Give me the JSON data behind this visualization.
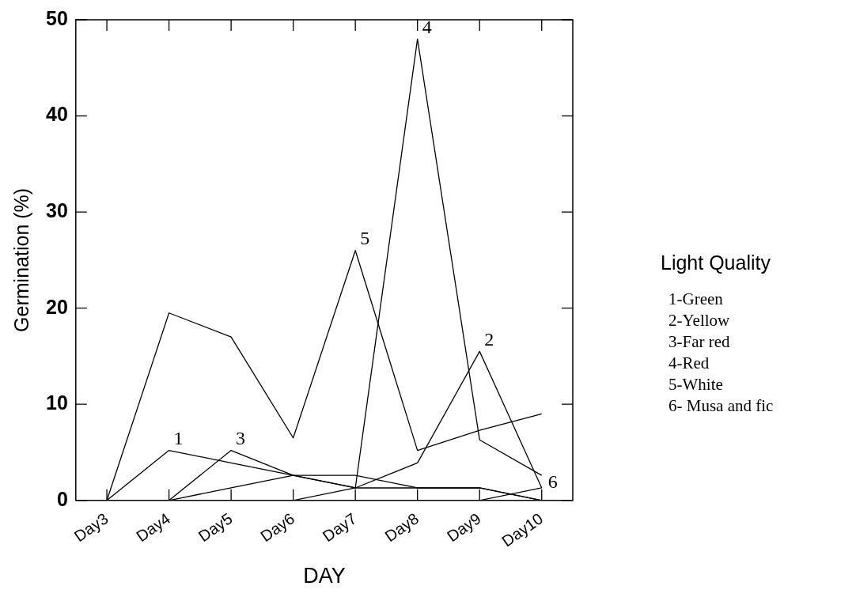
{
  "chart_data": {
    "type": "line",
    "xlabel": "DAY",
    "ylabel": "Germination (%)",
    "legend_title": "Light Quality",
    "grid": false,
    "marker": "none",
    "line_style": "solid",
    "categories": [
      "Day3",
      "Day4",
      "Day5",
      "Day6",
      "Day7",
      "Day8",
      "Day9",
      "Day10"
    ],
    "ylim": [
      0,
      50
    ],
    "yticks": [
      0,
      10,
      20,
      30,
      40,
      50
    ],
    "series": [
      {
        "name": "1",
        "color": "#000000",
        "values": [
          0,
          5.2,
          3.9,
          2.6,
          1.3,
          1.3,
          1.3,
          0
        ]
      },
      {
        "name": "2",
        "color": "#000000",
        "values": [
          null,
          0,
          1.3,
          2.6,
          1.3,
          3.9,
          15.5,
          1.3
        ]
      },
      {
        "name": "3",
        "color": "#000000",
        "values": [
          null,
          0,
          5.2,
          2.6,
          2.6,
          1.3,
          1.3,
          0
        ]
      },
      {
        "name": "4",
        "color": "#000000",
        "values": [
          null,
          null,
          null,
          0,
          1.3,
          48,
          6.3,
          2.6
        ]
      },
      {
        "name": "5",
        "color": "#000000",
        "values": [
          0,
          19.5,
          17,
          6.5,
          26,
          5.2,
          7.3,
          9
        ]
      },
      {
        "name": "6",
        "color": "#000000",
        "values": [
          null,
          null,
          null,
          null,
          null,
          null,
          0,
          1.3
        ]
      }
    ],
    "annotations": [
      "1-Green",
      "2-Yellow",
      "3-Far red",
      "4-Red",
      "5-White",
      "6- Musa and fic"
    ]
  }
}
